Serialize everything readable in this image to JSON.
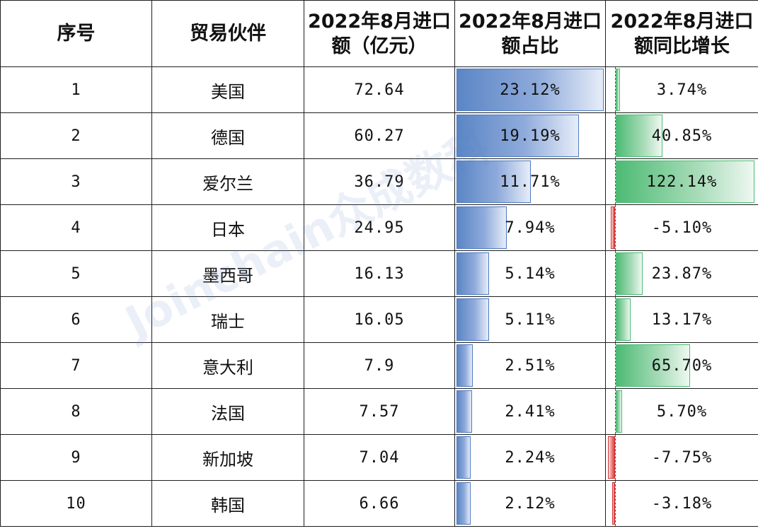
{
  "chart_data": {
    "type": "table",
    "columns": [
      "序号",
      "贸易伙伴",
      "2022年8月进口额（亿元）",
      "2022年8月进口额占比",
      "2022年8月进口额同比增长"
    ],
    "rows": [
      {
        "rank": "1",
        "partner": "美国",
        "amount": "72.64",
        "share": "23.12%",
        "share_value": 23.12,
        "growth": "3.74%",
        "growth_value": 3.74
      },
      {
        "rank": "2",
        "partner": "德国",
        "amount": "60.27",
        "share": "19.19%",
        "share_value": 19.19,
        "growth": "40.85%",
        "growth_value": 40.85
      },
      {
        "rank": "3",
        "partner": "爱尔兰",
        "amount": "36.79",
        "share": "11.71%",
        "share_value": 11.71,
        "growth": "122.14%",
        "growth_value": 122.14
      },
      {
        "rank": "4",
        "partner": "日本",
        "amount": "24.95",
        "share": "7.94%",
        "share_value": 7.94,
        "growth": "-5.10%",
        "growth_value": -5.1
      },
      {
        "rank": "5",
        "partner": "墨西哥",
        "amount": "16.13",
        "share": "5.14%",
        "share_value": 5.14,
        "growth": "23.87%",
        "growth_value": 23.87
      },
      {
        "rank": "6",
        "partner": "瑞士",
        "amount": "16.05",
        "share": "5.11%",
        "share_value": 5.11,
        "growth": "13.17%",
        "growth_value": 13.17
      },
      {
        "rank": "7",
        "partner": "意大利",
        "amount": "7.9",
        "share": "2.51%",
        "share_value": 2.51,
        "growth": "65.70%",
        "growth_value": 65.7
      },
      {
        "rank": "8",
        "partner": "法国",
        "amount": "7.57",
        "share": "2.41%",
        "share_value": 2.41,
        "growth": "5.70%",
        "growth_value": 5.7
      },
      {
        "rank": "9",
        "partner": "新加坡",
        "amount": "7.04",
        "share": "2.24%",
        "share_value": 2.24,
        "growth": "-7.75%",
        "growth_value": -7.75
      },
      {
        "rank": "10",
        "partner": "韩国",
        "amount": "6.66",
        "share": "2.12%",
        "share_value": 2.12,
        "growth": "-3.18%",
        "growth_value": -3.18
      }
    ],
    "colors": {
      "share_bar": "#5b86c5",
      "positive_bar": "#4dbb74",
      "negative_bar": "#e04040"
    }
  },
  "watermark": "Joinchain众成数科"
}
